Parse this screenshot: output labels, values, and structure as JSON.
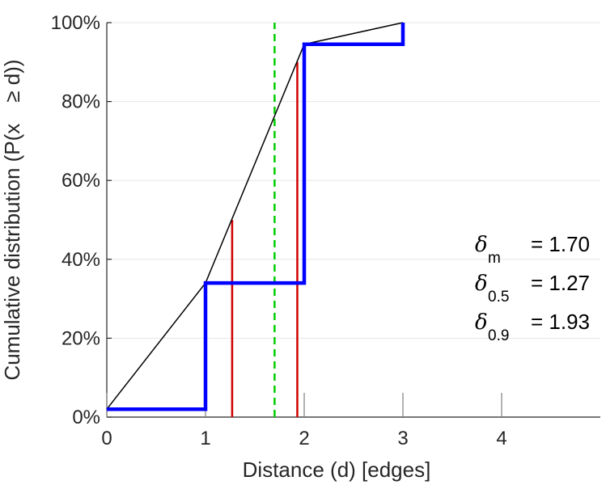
{
  "chart_data": {
    "type": "line",
    "xlabel": "Distance (d) [edges]",
    "ylabel": "Cumulative distribution (P(x ≥ d))",
    "xlim": [
      0,
      5
    ],
    "ylim": [
      0,
      1
    ],
    "x_ticks": [
      0,
      1,
      2,
      3,
      4
    ],
    "x_tick_labels": [
      "0",
      "1",
      "2",
      "3",
      "4"
    ],
    "y_ticks": [
      0,
      0.2,
      0.4,
      0.6,
      0.8,
      1.0
    ],
    "y_tick_labels": [
      "0%",
      "20%",
      "40%",
      "60%",
      "80%",
      "100%"
    ],
    "grid": "horizontal",
    "series": [
      {
        "style": "step",
        "color": "#0000ff",
        "points": [
          [
            0,
            0.02
          ],
          [
            1,
            0.02
          ],
          [
            1,
            0.34
          ],
          [
            2,
            0.34
          ],
          [
            2,
            0.945
          ],
          [
            3,
            0.945
          ],
          [
            3,
            1.0
          ]
        ]
      },
      {
        "style": "line",
        "color": "#000000",
        "points": [
          [
            0,
            0.02
          ],
          [
            1,
            0.34
          ],
          [
            2,
            0.945
          ],
          [
            3,
            1.0
          ]
        ]
      }
    ],
    "vertical_markers": [
      {
        "x": 1.27,
        "y": 0.5,
        "color": "#d00000",
        "style": "solid"
      },
      {
        "x": 1.93,
        "y": 0.9,
        "color": "#d00000",
        "style": "solid"
      },
      {
        "x": 1.7,
        "y": 1.0,
        "color": "#00cc00",
        "style": "dashed"
      }
    ],
    "annotations": [
      {
        "symbol": "δ",
        "sub": "m",
        "value": "= 1.70"
      },
      {
        "symbol": "δ",
        "sub": "0.5",
        "value": "= 1.27"
      },
      {
        "symbol": "δ",
        "sub": "0.9",
        "value": "= 1.93"
      }
    ]
  }
}
